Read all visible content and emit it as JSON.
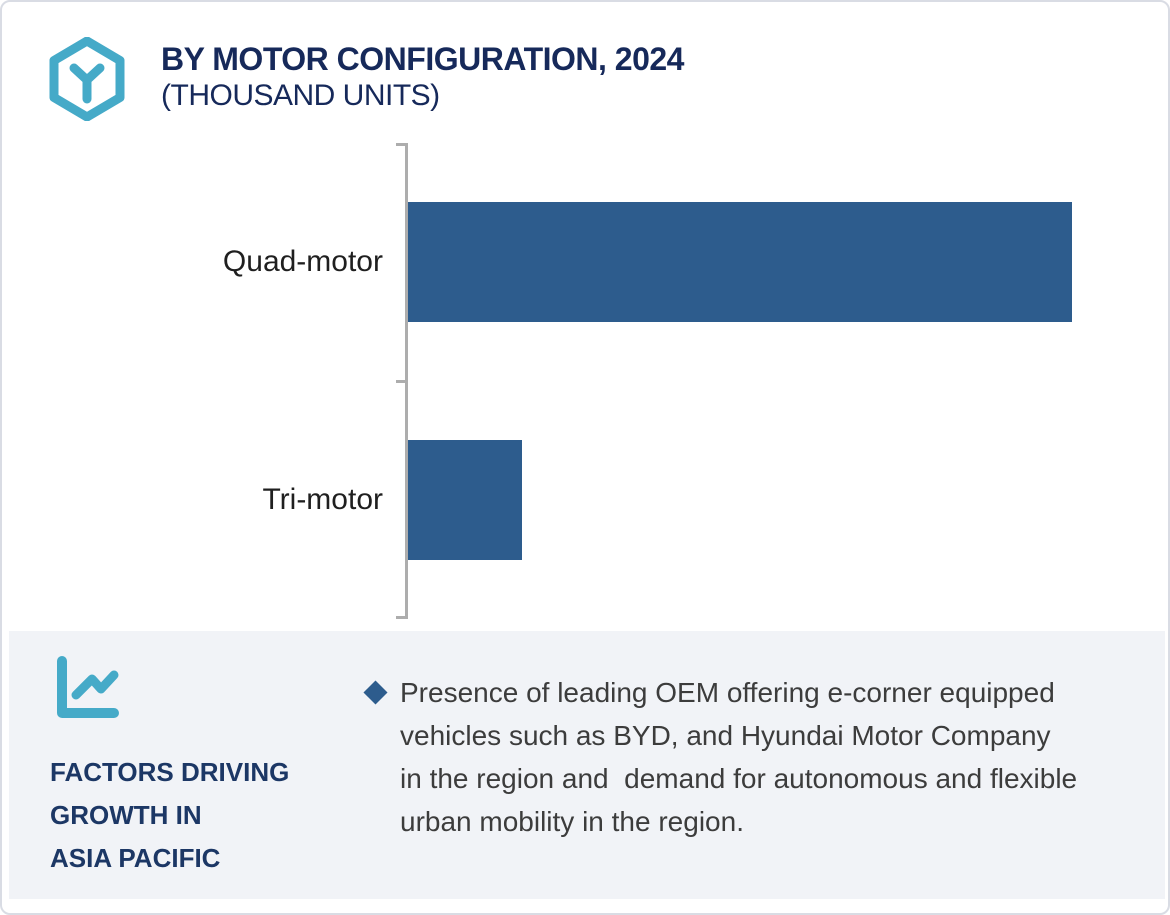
{
  "header": {
    "title_line1": "BY MOTOR CONFIGURATION, 2024",
    "title_line2": "(THOUSAND UNITS)",
    "logo_icon": "hexagon-y-icon"
  },
  "chart_data": {
    "type": "bar",
    "orientation": "horizontal",
    "title": "BY MOTOR CONFIGURATION, 2024 (THOUSAND UNITS)",
    "categories": [
      "Quad-motor",
      "Tri-motor"
    ],
    "values": [
      100,
      17.2
    ],
    "value_axis_labeled": false,
    "value_unit": "relative (thousand units, axis unlabeled)",
    "xlim": [
      0,
      106
    ],
    "ylabel": "",
    "xlabel": "",
    "grid": false,
    "legend": false,
    "bar_color": "#2d5c8d",
    "axis_color": "#adadad",
    "tick_count": 3
  },
  "factors": {
    "icon": "line-chart-icon",
    "heading_lines": [
      "FACTORS DRIVING",
      "GROWTH IN",
      "ASIA PACIFIC"
    ],
    "bullet_marker": "diamond",
    "bullet_text": "Presence of leading OEM offering e-corner equipped vehicles such as BYD, and Hyundai Motor Company in the region and  demand for autonomous and flexible urban mobility in the region."
  },
  "colors": {
    "accent_teal": "#45aac8",
    "title_navy": "#16295a",
    "factors_navy": "#1c3765",
    "bar_blue": "#2d5c8d",
    "panel_bg": "#f1f3f7",
    "body_text": "#3c3c3c",
    "axis_gray": "#adadad",
    "card_border": "#d9dce4"
  }
}
